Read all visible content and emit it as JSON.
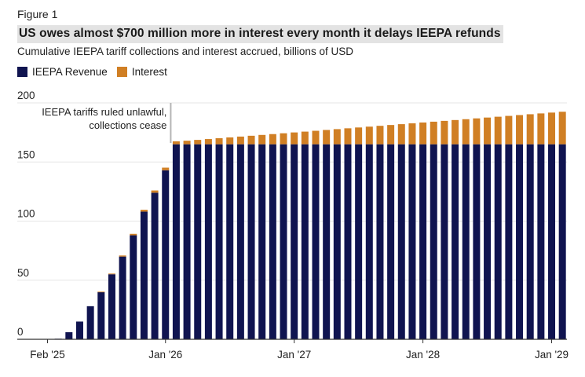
{
  "figure": {
    "label": "Figure 1",
    "title": "US owes almost $700 million more in interest every month it delays IEEPA refunds",
    "subtitle": "Cumulative IEEPA tariff collections and interest accrued, billions of USD"
  },
  "colors": {
    "revenue": "#101450",
    "interest": "#d07f24",
    "grid": "#e6e6e6",
    "axis": "#333333",
    "annotation_line": "#b5b5b5"
  },
  "chart_data": {
    "type": "bar",
    "stacked": true,
    "title": "US owes almost $700 million more in interest every month it delays IEEPA refunds",
    "subtitle": "Cumulative IEEPA tariff collections and interest accrued, billions of USD",
    "xlabel": "",
    "ylabel": "",
    "ylim": [
      0,
      200
    ],
    "yticks": [
      0,
      50,
      100,
      150,
      200
    ],
    "grid": true,
    "legend_position": "top-left",
    "x_tick_labels": [
      {
        "index": 0,
        "label": "Feb '25"
      },
      {
        "index": 11,
        "label": "Jan '26"
      },
      {
        "index": 23,
        "label": "Jan '27"
      },
      {
        "index": 35,
        "label": "Jan '28"
      },
      {
        "index": 47,
        "label": "Jan '29"
      }
    ],
    "categories": [
      "Feb 2025",
      "Mar 2025",
      "Apr 2025",
      "May 2025",
      "Jun 2025",
      "Jul 2025",
      "Aug 2025",
      "Sep 2025",
      "Oct 2025",
      "Nov 2025",
      "Dec 2025",
      "Jan 2026",
      "Feb 2026",
      "Mar 2026",
      "Apr 2026",
      "May 2026",
      "Jun 2026",
      "Jul 2026",
      "Aug 2026",
      "Sep 2026",
      "Oct 2026",
      "Nov 2026",
      "Dec 2026",
      "Jan 2027",
      "Feb 2027",
      "Mar 2027",
      "Apr 2027",
      "May 2027",
      "Jun 2027",
      "Jul 2027",
      "Aug 2027",
      "Sep 2027",
      "Oct 2027",
      "Nov 2027",
      "Dec 2027",
      "Jan 2028",
      "Feb 2028",
      "Mar 2028",
      "Apr 2028",
      "May 2028",
      "Jun 2028",
      "Jul 2028",
      "Aug 2028",
      "Sep 2028",
      "Oct 2028",
      "Nov 2028",
      "Dec 2028",
      "Jan 2029",
      "Feb 2029"
    ],
    "series": [
      {
        "name": "IEEPA Revenue",
        "values": [
          0,
          0.5,
          6,
          15,
          28,
          40,
          55,
          70,
          88,
          108,
          124,
          143,
          165,
          165,
          165,
          165,
          165,
          165,
          165,
          165,
          165,
          165,
          165,
          165,
          165,
          165,
          165,
          165,
          165,
          165,
          165,
          165,
          165,
          165,
          165,
          165,
          165,
          165,
          165,
          165,
          165,
          165,
          165,
          165,
          165,
          165,
          165,
          165,
          165
        ]
      },
      {
        "name": "Interest",
        "values": [
          0,
          0,
          0,
          0,
          0,
          0.3,
          0.6,
          0.9,
          1.2,
          1.6,
          1.9,
          2.2,
          2.5,
          3.0,
          3.7,
          4.4,
          5.1,
          5.8,
          6.5,
          7.2,
          7.9,
          8.6,
          9.3,
          10.0,
          10.7,
          11.4,
          12.1,
          12.8,
          13.5,
          14.2,
          14.9,
          15.6,
          16.3,
          17.0,
          17.7,
          18.4,
          19.1,
          19.8,
          20.5,
          21.2,
          21.9,
          22.6,
          23.3,
          24.0,
          24.7,
          25.4,
          26.1,
          26.8,
          27.5
        ]
      }
    ],
    "annotation": {
      "at_index": 12,
      "line1": "IEEPA tariffs ruled unlawful,",
      "line2": "collections cease"
    }
  }
}
